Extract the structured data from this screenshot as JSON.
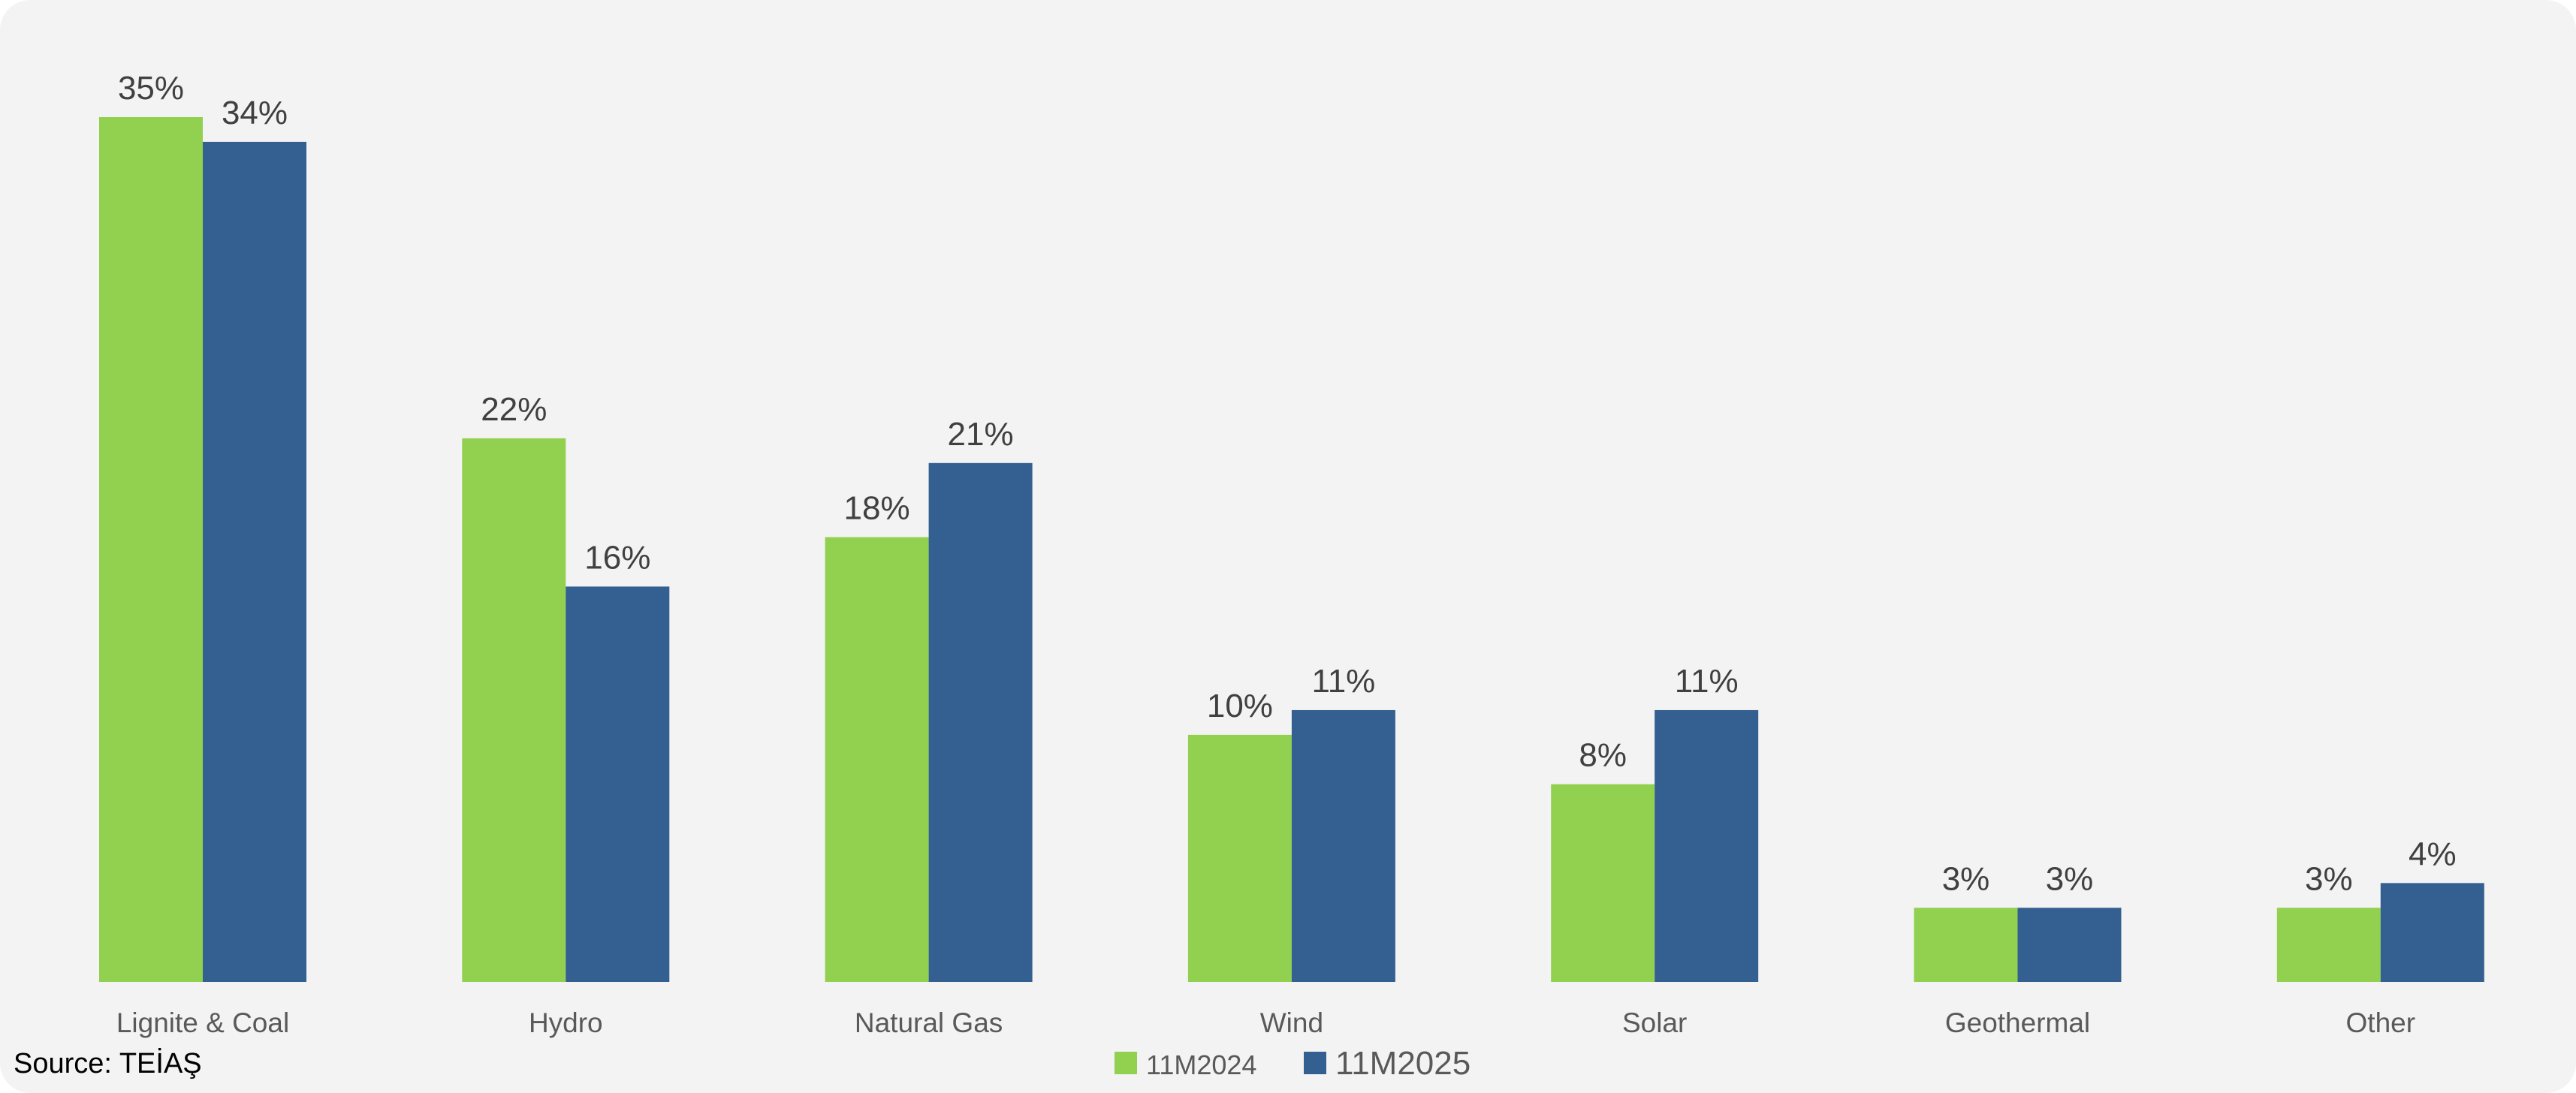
{
  "chart_data": {
    "type": "bar",
    "categories": [
      "Lignite & Coal",
      "Hydro",
      "Natural Gas",
      "Wind",
      "Solar",
      "Geothermal",
      "Other"
    ],
    "series": [
      {
        "name": "11M2024",
        "color": "#92d050",
        "values": [
          35,
          22,
          18,
          10,
          8,
          3,
          3
        ],
        "labels": [
          "35%",
          "22%",
          "18%",
          "10%",
          "8%",
          "3%",
          "3%"
        ]
      },
      {
        "name": "11M2025",
        "color": "#345f91",
        "values": [
          34,
          16,
          21,
          11,
          11,
          3,
          4
        ],
        "labels": [
          "34%",
          "16%",
          "21%",
          "11%",
          "11%",
          "3%",
          "4%"
        ]
      }
    ],
    "title": "",
    "xlabel": "",
    "ylabel": "",
    "ylim": [
      0,
      35
    ],
    "grid": false,
    "legend_position": "bottom-center"
  },
  "source": "Source: TEİAŞ"
}
